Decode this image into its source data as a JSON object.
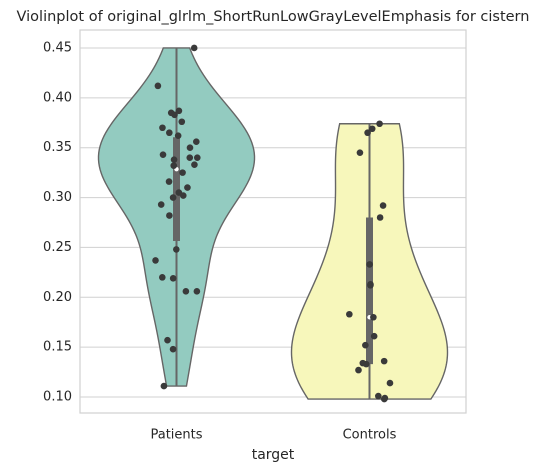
{
  "chart_data": {
    "type": "violin",
    "title": "Violinplot of original_glrlm_ShortRunLowGrayLevelEmphasis for cistern",
    "x_label": "target",
    "series": [
      {
        "name": "Patients",
        "color": "#93cbc0",
        "values": [
          0.45,
          0.412,
          0.387,
          0.385,
          0.383,
          0.376,
          0.37,
          0.365,
          0.362,
          0.356,
          0.35,
          0.343,
          0.34,
          0.34,
          0.338,
          0.333,
          0.332,
          0.325,
          0.316,
          0.31,
          0.305,
          0.302,
          0.3,
          0.293,
          0.282,
          0.248,
          0.237,
          0.22,
          0.219,
          0.206,
          0.206,
          0.157,
          0.148,
          0.111
        ]
      },
      {
        "name": "Controls",
        "color": "#f7f7bb",
        "values": [
          0.374,
          0.369,
          0.365,
          0.345,
          0.292,
          0.28,
          0.233,
          0.213,
          0.212,
          0.183,
          0.18,
          0.161,
          0.152,
          0.136,
          0.134,
          0.133,
          0.127,
          0.114,
          0.101,
          0.099,
          0.098
        ]
      }
    ],
    "ylim": [
      0.084,
      0.468
    ],
    "yticks": [
      {
        "value": 0.1,
        "label": "0.10"
      },
      0.15,
      {
        "value": 0.2,
        "label": "0.20"
      },
      0.25,
      {
        "value": 0.3,
        "label": "0.30"
      },
      0.35,
      {
        "value": 0.4,
        "label": "0.40"
      },
      0.45
    ],
    "grid": true
  }
}
